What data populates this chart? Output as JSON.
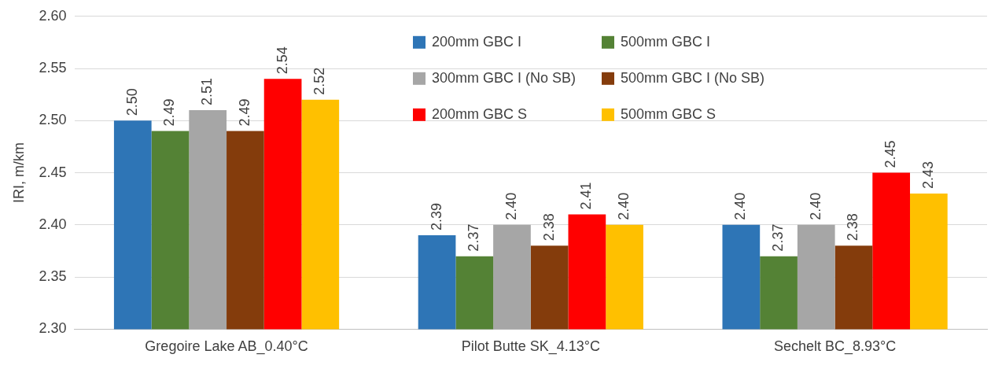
{
  "chart_data": {
    "type": "bar",
    "ylabel": "IRI, m/km",
    "categories": [
      "Gregoire Lake AB_0.40°C",
      "Pilot Butte SK_4.13°C",
      "Sechelt BC_8.93°C"
    ],
    "series": [
      {
        "name": "200mm GBC I",
        "color": "#2e75b6",
        "values": [
          2.5,
          2.39,
          2.4
        ],
        "value_labels": [
          "2.50",
          "2.39",
          "2.40"
        ]
      },
      {
        "name": "500mm GBC I",
        "color": "#548235",
        "values": [
          2.49,
          2.37,
          2.37
        ],
        "value_labels": [
          "2.49",
          "2.37",
          "2.37"
        ]
      },
      {
        "name": "300mm GBC I (No SB)",
        "color": "#a6a6a6",
        "values": [
          2.51,
          2.4,
          2.4
        ],
        "value_labels": [
          "2.51",
          "2.40",
          "2.40"
        ]
      },
      {
        "name": "500mm GBC I (No SB)",
        "color": "#843c0c",
        "values": [
          2.49,
          2.38,
          2.38
        ],
        "value_labels": [
          "2.49",
          "2.38",
          "2.38"
        ]
      },
      {
        "name": "200mm GBC S",
        "color": "#ff0000",
        "values": [
          2.54,
          2.41,
          2.45
        ],
        "value_labels": [
          "2.54",
          "2.41",
          "2.45"
        ]
      },
      {
        "name": "500mm GBC S",
        "color": "#ffc000",
        "values": [
          2.52,
          2.4,
          2.43
        ],
        "value_labels": [
          "2.52",
          "2.40",
          "2.43"
        ]
      }
    ],
    "ylim": [
      2.3,
      2.6
    ],
    "yticks": [
      {
        "value": 2.3,
        "label": "2.30"
      },
      {
        "value": 2.35,
        "label": "2.35"
      },
      {
        "value": 2.4,
        "label": "2.40"
      },
      {
        "value": 2.45,
        "label": "2.45"
      },
      {
        "value": 2.5,
        "label": "2.50"
      },
      {
        "value": 2.55,
        "label": "2.55"
      },
      {
        "value": 2.6,
        "label": "2.60"
      }
    ],
    "grid": "y",
    "legend": "top right"
  }
}
